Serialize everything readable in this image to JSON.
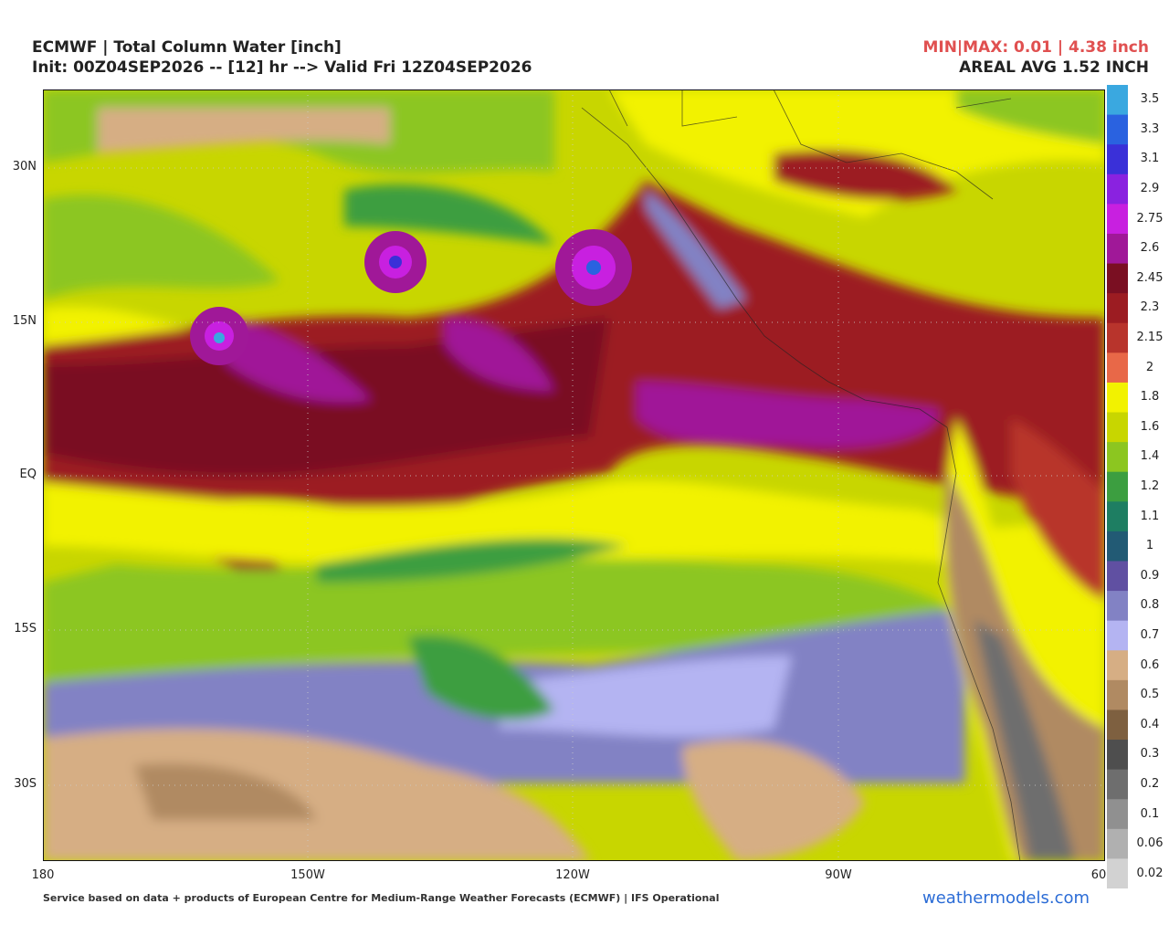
{
  "header": {
    "title": "ECMWF | Total Column Water [inch]",
    "subtitle": "Init: 00Z04SEP2026 -- [12] hr --> Valid Fri 12Z04SEP2026",
    "minmax": "MIN|MAX: 0.01 | 4.38 inch",
    "areal_avg": "AREAL AVG 1.52 INCH"
  },
  "map": {
    "lat_labels": [
      "30N",
      "15N",
      "EQ",
      "15S",
      "30S"
    ],
    "lon_labels": [
      "180",
      "150W",
      "120W",
      "90W",
      "60"
    ]
  },
  "colorbar": {
    "levels": [
      {
        "label": 3.5,
        "color": "#3aa8e0"
      },
      {
        "label": 3.3,
        "color": "#2a62e0"
      },
      {
        "label": 3.1,
        "color": "#3a30d8"
      },
      {
        "label": 2.9,
        "color": "#8a22e0"
      },
      {
        "label": 2.75,
        "color": "#c820e0"
      },
      {
        "label": 2.6,
        "color": "#a01898"
      },
      {
        "label": 2.45,
        "color": "#7a0f22"
      },
      {
        "label": 2.3,
        "color": "#9c1c22"
      },
      {
        "label": 2.15,
        "color": "#b8342c"
      },
      {
        "label": 2,
        "color": "#e86848"
      },
      {
        "label": 1.8,
        "color": "#f2f200"
      },
      {
        "label": 1.6,
        "color": "#c8d600"
      },
      {
        "label": 1.4,
        "color": "#8cc620"
      },
      {
        "label": 1.2,
        "color": "#3c9e40"
      },
      {
        "label": 1.1,
        "color": "#1e7e62"
      },
      {
        "label": 1,
        "color": "#225a74"
      },
      {
        "label": 0.9,
        "color": "#6050a2"
      },
      {
        "label": 0.8,
        "color": "#8282c4"
      },
      {
        "label": 0.7,
        "color": "#b4b4f2"
      },
      {
        "label": 0.6,
        "color": "#d6ae84"
      },
      {
        "label": 0.5,
        "color": "#b08a62"
      },
      {
        "label": 0.4,
        "color": "#7e6040"
      },
      {
        "label": 0.3,
        "color": "#4e4e4e"
      },
      {
        "label": 0.2,
        "color": "#6e6e6e"
      },
      {
        "label": 0.1,
        "color": "#909090"
      },
      {
        "label": 0.06,
        "color": "#b0b0b0"
      },
      {
        "label": 0.02,
        "color": "#d2d2d2"
      }
    ]
  },
  "footer": {
    "credit": "Service based on data + products of European Centre for Medium-Range Weather Forecasts (ECMWF) | IFS Operational",
    "brand": "weathermodels.com"
  }
}
